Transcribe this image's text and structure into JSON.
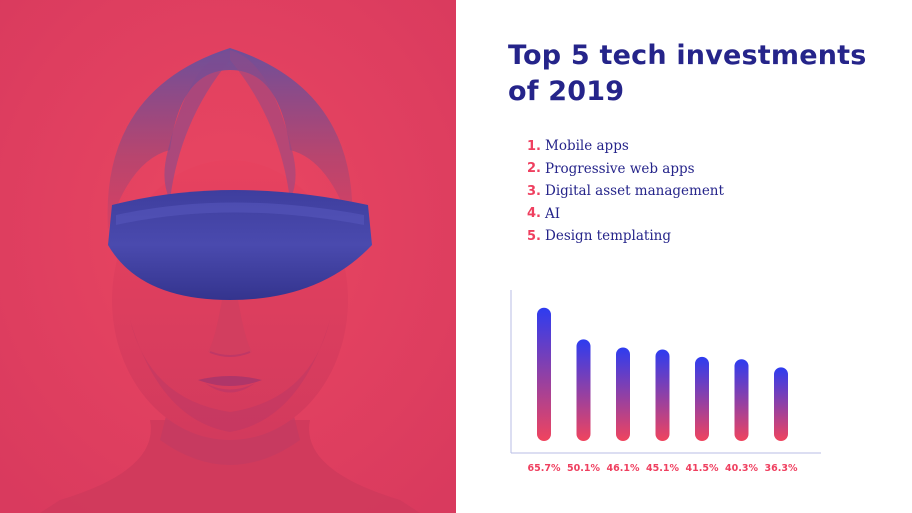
{
  "header": {
    "title": "Top 5 tech investments of 2019"
  },
  "list": {
    "items": [
      {
        "number": "1.",
        "label": "Mobile apps"
      },
      {
        "number": "2.",
        "label": "Progressive web apps"
      },
      {
        "number": "3.",
        "label": "Digital asset management"
      },
      {
        "number": "4.",
        "label": "AI"
      },
      {
        "number": "5.",
        "label": "Design templating"
      }
    ]
  },
  "colors": {
    "title": "#25248a",
    "accent": "#ef3f5f",
    "bar_top": "#2d3cf0",
    "bar_bottom": "#f0445e",
    "photo_red": "#e8405f",
    "photo_blue": "#3a3a9c"
  },
  "chart_data": {
    "type": "bar",
    "categories": [
      "65.7%",
      "50.1%",
      "46.1%",
      "45.1%",
      "41.5%",
      "40.3%",
      "36.3%"
    ],
    "values": [
      65.7,
      50.1,
      46.1,
      45.1,
      41.5,
      40.3,
      36.3
    ],
    "title": "",
    "xlabel": "",
    "ylabel": "",
    "ylim": [
      0,
      70
    ],
    "grid": false,
    "legend": "none"
  }
}
